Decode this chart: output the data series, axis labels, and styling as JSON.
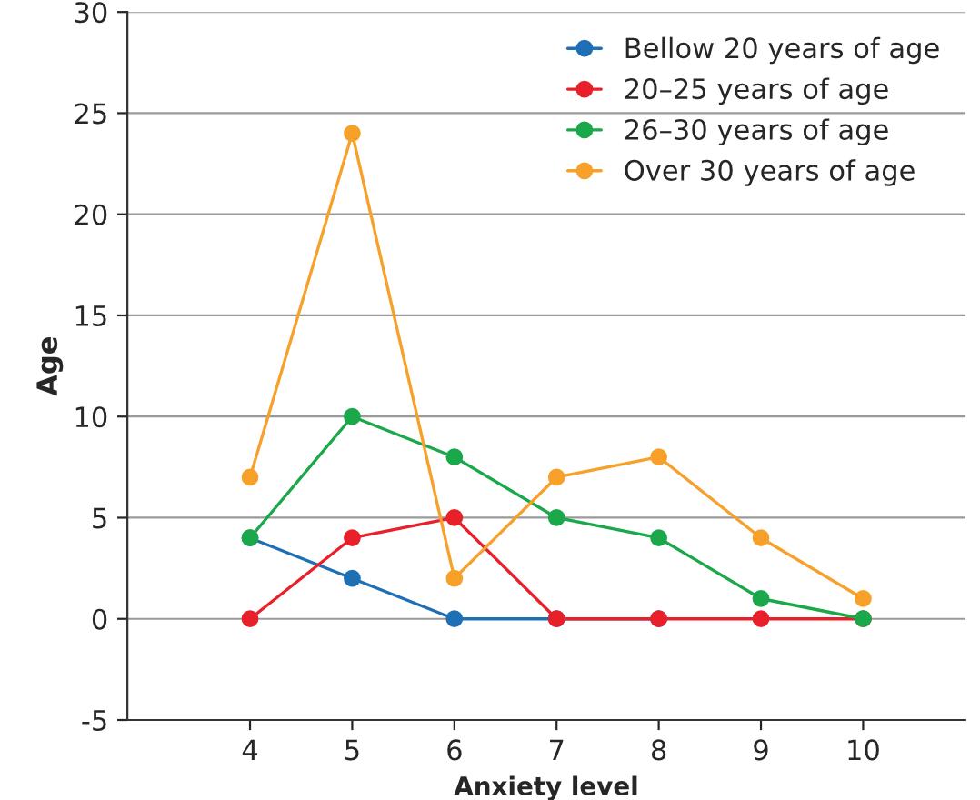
{
  "chart_data": {
    "type": "line",
    "xlabel": "Anxiety level",
    "ylabel": "Age",
    "x": [
      4,
      5,
      6,
      7,
      8,
      9,
      10
    ],
    "series": [
      {
        "name": "Bellow 20 years of age",
        "color": "#1f6fb5",
        "values": [
          4,
          2,
          0,
          0,
          0,
          null,
          null
        ]
      },
      {
        "name": "20–25 years of age",
        "color": "#e8202a",
        "values": [
          0,
          4,
          5,
          0,
          0,
          0,
          0
        ]
      },
      {
        "name": "26–30 years of age",
        "color": "#1aa84a",
        "values": [
          4,
          10,
          8,
          5,
          4,
          1,
          0
        ]
      },
      {
        "name": "Over 30 years of age",
        "color": "#f7a12b",
        "values": [
          7,
          24,
          2,
          7,
          8,
          4,
          1
        ]
      }
    ],
    "xlim": [
      2.8,
      11
    ],
    "xticks": [
      4,
      5,
      6,
      7,
      8,
      9,
      10
    ],
    "ylim": [
      -5,
      30
    ],
    "yticks": [
      -5,
      0,
      5,
      10,
      15,
      20,
      25,
      30
    ],
    "grid": "y",
    "legend": "top right",
    "marker": "circle",
    "line_style": "solid"
  }
}
